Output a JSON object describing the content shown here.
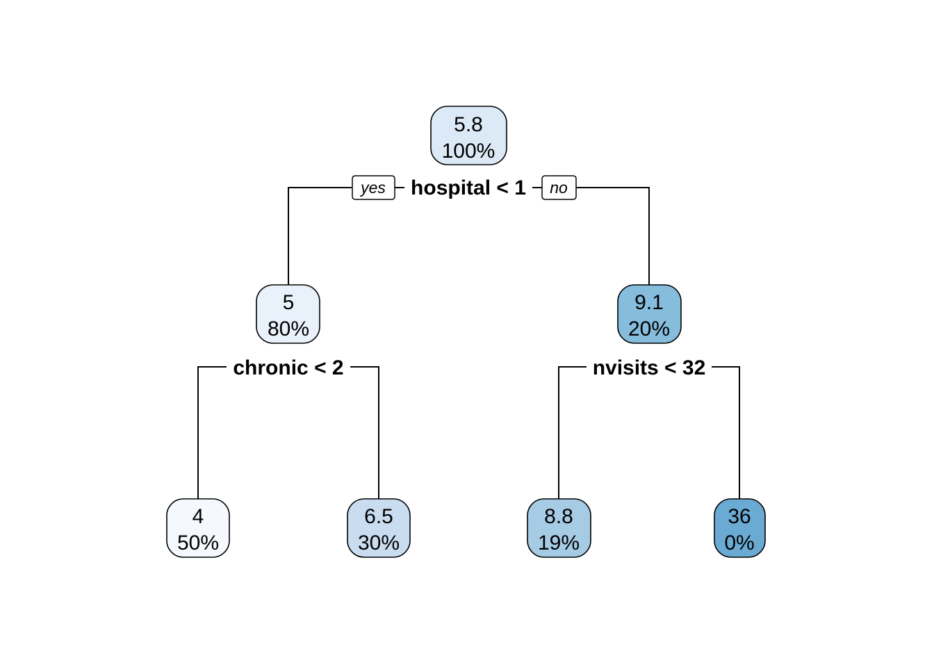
{
  "tree": {
    "nodes": [
      {
        "id": "root",
        "value": "5.8",
        "percent": "100%",
        "color": "#dce9f6"
      },
      {
        "id": "left",
        "value": "5",
        "percent": "80%",
        "color": "#e9f1fa"
      },
      {
        "id": "right",
        "value": "9.1",
        "percent": "20%",
        "color": "#86bcdc"
      },
      {
        "id": "ll",
        "value": "4",
        "percent": "50%",
        "color": "#f5f9fd"
      },
      {
        "id": "lr",
        "value": "6.5",
        "percent": "30%",
        "color": "#c9dcf0"
      },
      {
        "id": "rl",
        "value": "8.8",
        "percent": "19%",
        "color": "#a6cbe4"
      },
      {
        "id": "rr",
        "value": "36",
        "percent": "0%",
        "color": "#6aaad3"
      }
    ],
    "splits": {
      "root": "hospital < 1",
      "left": "chronic < 2",
      "right": "nvisits < 32"
    },
    "branch_labels": {
      "yes": "yes",
      "no": "no"
    }
  }
}
